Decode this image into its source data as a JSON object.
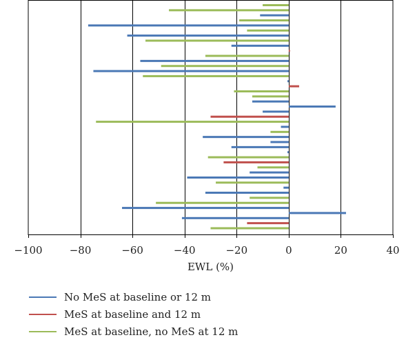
{
  "chart_data": {
    "type": "bar",
    "orientation": "horizontal",
    "xlabel": "EWL (%)",
    "ylabel": "",
    "title": "",
    "xlim": [
      -100,
      40
    ],
    "xticks": [
      -100,
      -80,
      -60,
      -40,
      -20,
      0,
      20,
      40
    ],
    "xtick_labels": [
      "−100",
      "−80",
      "−60",
      "−40",
      "−20",
      "0",
      "20",
      "40"
    ],
    "grid": "vertical major gridlines",
    "legend_position": "bottom",
    "series": [
      {
        "name": "No MeS at baseline or 12 m",
        "color": "#4a78b5"
      },
      {
        "name": "MeS at baseline and 12 m",
        "color": "#c0504d"
      },
      {
        "name": "MeS at baseline, no MeS at 12 m",
        "color": "#9bbb59"
      }
    ],
    "bars": [
      {
        "series": 2,
        "value": -10
      },
      {
        "series": 2,
        "value": -46
      },
      {
        "series": 0,
        "value": -11
      },
      {
        "series": 2,
        "value": -19
      },
      {
        "series": 0,
        "value": -77
      },
      {
        "series": 2,
        "value": -16
      },
      {
        "series": 0,
        "value": -62
      },
      {
        "series": 2,
        "value": -55
      },
      {
        "series": 0,
        "value": -22
      },
      {
        "series": 1,
        "value": 0.5
      },
      {
        "series": 2,
        "value": -32
      },
      {
        "series": 0,
        "value": -57
      },
      {
        "series": 2,
        "value": -49
      },
      {
        "series": 0,
        "value": -75
      },
      {
        "series": 2,
        "value": -56
      },
      {
        "series": 0,
        "value": -0.5
      },
      {
        "series": 1,
        "value": 4
      },
      {
        "series": 2,
        "value": -21
      },
      {
        "series": 2,
        "value": -14
      },
      {
        "series": 0,
        "value": -14
      },
      {
        "series": 0,
        "value": 18
      },
      {
        "series": 0,
        "value": -10
      },
      {
        "series": 1,
        "value": -30
      },
      {
        "series": 2,
        "value": -74
      },
      {
        "series": 0,
        "value": -3
      },
      {
        "series": 2,
        "value": -7
      },
      {
        "series": 0,
        "value": -33
      },
      {
        "series": 0,
        "value": -7
      },
      {
        "series": 0,
        "value": -22
      },
      {
        "series": 0,
        "value": -0.5
      },
      {
        "series": 2,
        "value": -31
      },
      {
        "series": 1,
        "value": -25
      },
      {
        "series": 2,
        "value": -12
      },
      {
        "series": 0,
        "value": -15
      },
      {
        "series": 0,
        "value": -39
      },
      {
        "series": 2,
        "value": -28
      },
      {
        "series": 0,
        "value": -2
      },
      {
        "series": 0,
        "value": -32
      },
      {
        "series": 2,
        "value": -15
      },
      {
        "series": 2,
        "value": -51
      },
      {
        "series": 0,
        "value": -64
      },
      {
        "series": 0,
        "value": 22
      },
      {
        "series": 0,
        "value": -41
      },
      {
        "series": 1,
        "value": -16
      },
      {
        "series": 2,
        "value": -30
      }
    ]
  }
}
